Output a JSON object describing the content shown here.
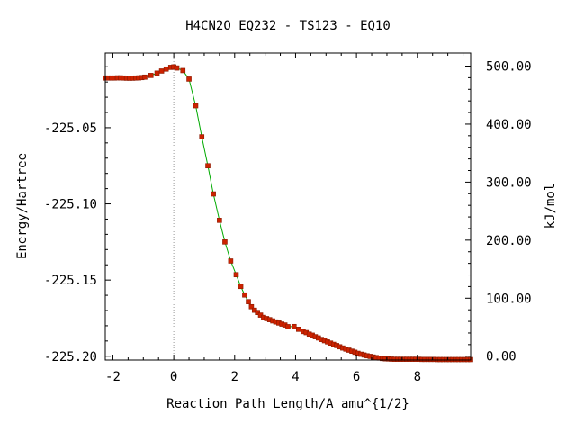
{
  "chart_data": {
    "type": "line",
    "title": "H4CN2O   EQ232 - TS123 - EQ10",
    "xlabel": "Reaction Path Length/A amu^{1/2}",
    "ylabel": "Energy/Hartree",
    "y2label": "kJ/mol",
    "xlim": [
      -2.25,
      9.75
    ],
    "ylim": [
      -225.2025,
      -225.001
    ],
    "y2lim": [
      -6.6,
      522.5
    ],
    "xticks": [
      -2,
      0,
      2,
      4,
      6,
      8
    ],
    "xtick_labels": [
      "-2",
      "0",
      "2",
      "4",
      "6",
      "8"
    ],
    "yticks": [
      -225.05,
      -225.1,
      -225.15,
      -225.2
    ],
    "ytick_labels": [
      "-225.05",
      "-225.10",
      "-225.15",
      "-225.20"
    ],
    "y2ticks": [
      0,
      100,
      200,
      300,
      400,
      500
    ],
    "y2tick_labels": [
      "0.00",
      "100.00",
      "200.00",
      "300.00",
      "400.00",
      "500.00"
    ],
    "ts_marker_x": 0,
    "colors": {
      "line": "#00aa00",
      "marker": "#cc2200",
      "marker_edge": "#8b1a00",
      "ts_marker": "#999999",
      "frame": "#000000"
    },
    "series": [
      {
        "x": [
          -2.25,
          -2.15,
          -2.05,
          -1.95,
          -1.85,
          -1.75,
          -1.65,
          -1.55,
          -1.45,
          -1.35,
          -1.25,
          -1.15,
          -1.05,
          -0.95,
          -0.75,
          -0.55,
          -0.4,
          -0.25,
          -0.1,
          0.0,
          0.1,
          0.3,
          0.5,
          0.72,
          0.92,
          1.12,
          1.3,
          1.5,
          1.68,
          1.87,
          2.05,
          2.2,
          2.33,
          2.45,
          2.55,
          2.65,
          2.75,
          2.85,
          2.95,
          3.05,
          3.15,
          3.25,
          3.35,
          3.45,
          3.55,
          3.65,
          3.75,
          3.95,
          4.1,
          4.25,
          4.35,
          4.45,
          4.55,
          4.65,
          4.75,
          4.85,
          4.95,
          5.05,
          5.15,
          5.25,
          5.35,
          5.45,
          5.55,
          5.65,
          5.75,
          5.85,
          5.95,
          6.05,
          6.15,
          6.25,
          6.35,
          6.45,
          6.55,
          6.65,
          6.75,
          6.85,
          6.95,
          7.05,
          7.15,
          7.25,
          7.35,
          7.45,
          7.55,
          7.65,
          7.75,
          7.85,
          7.95,
          8.05,
          8.15,
          8.25,
          8.35,
          8.45,
          8.55,
          8.65,
          8.75,
          8.85,
          8.95,
          9.05,
          9.15,
          9.25,
          9.35,
          9.45,
          9.55,
          9.65,
          9.75
        ],
        "y": [
          -225.0174,
          -225.0174,
          -225.0174,
          -225.0174,
          -225.0173,
          -225.0173,
          -225.0174,
          -225.0175,
          -225.0175,
          -225.0175,
          -225.0174,
          -225.0173,
          -225.0171,
          -225.0168,
          -225.0157,
          -225.0142,
          -225.0128,
          -225.0115,
          -225.0104,
          -225.0101,
          -225.0108,
          -225.0125,
          -225.0181,
          -225.0356,
          -225.056,
          -225.075,
          -225.0935,
          -225.1108,
          -225.125,
          -225.1375,
          -225.1465,
          -225.1542,
          -225.1598,
          -225.1642,
          -225.1675,
          -225.1698,
          -225.1713,
          -225.173,
          -225.1745,
          -225.1753,
          -225.176,
          -225.1768,
          -225.1775,
          -225.1782,
          -225.1789,
          -225.1795,
          -225.1806,
          -225.1805,
          -225.1823,
          -225.1838,
          -225.1845,
          -225.1855,
          -225.1862,
          -225.1872,
          -225.188,
          -225.189,
          -225.1898,
          -225.1906,
          -225.1914,
          -225.1922,
          -225.193,
          -225.1938,
          -225.1946,
          -225.1953,
          -225.196,
          -225.1967,
          -225.1974,
          -225.1981,
          -225.1987,
          -225.1992,
          -225.1997,
          -225.2001,
          -225.2005,
          -225.2009,
          -225.2012,
          -225.2015,
          -225.2017,
          -225.2018,
          -225.2019,
          -225.202,
          -225.202,
          -225.202,
          -225.202,
          -225.202,
          -225.202,
          -225.202,
          -225.202,
          -225.202,
          -225.2021,
          -225.2021,
          -225.2021,
          -225.2021,
          -225.2021,
          -225.2022,
          -225.2022,
          -225.2022,
          -225.2022,
          -225.2022,
          -225.2022,
          -225.2022,
          -225.2022,
          -225.2022,
          -225.2022,
          -225.2022,
          -225.2022
        ]
      }
    ]
  }
}
